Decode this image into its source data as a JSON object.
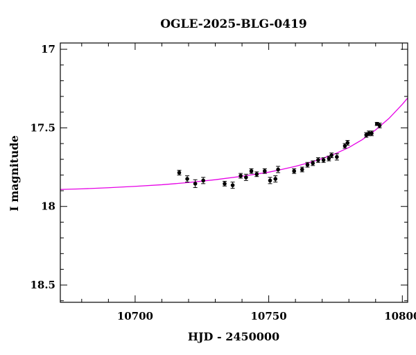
{
  "chart_data": {
    "type": "scatter",
    "title": "OGLE-2025-BLG-0419",
    "xlabel": "HJD - 2450000",
    "ylabel": "I magnitude",
    "xlim": [
      10672,
      10802
    ],
    "ylim": [
      18.61,
      16.96
    ],
    "y_inverted": true,
    "x_major_ticks": [
      10700,
      10750,
      10800
    ],
    "x_tick_labels": [
      "10700",
      "10750",
      "10800"
    ],
    "x_minor_step": 10,
    "y_major_ticks": [
      17,
      17.5,
      18,
      18.5
    ],
    "y_tick_labels": [
      "17",
      "17.5",
      "18",
      "18.5"
    ],
    "y_minor_step": 0.1,
    "grid": false,
    "colors": {
      "data": "#000000",
      "model": "#e600e6",
      "axes": "#000000"
    },
    "series": [
      {
        "kind": "errorbar",
        "x": [
          10716.5,
          10719.5,
          10722.5,
          10725.5,
          10733.5,
          10736.5,
          10739.5,
          10741.5,
          10743.5,
          10745.5,
          10748.5,
          10750.5,
          10752.5,
          10753.5,
          10759.5,
          10762.5,
          10764.5,
          10766.5,
          10768.5,
          10770.5,
          10772.5,
          10773.5,
          10775.5,
          10778.5,
          10779.5,
          10786.5,
          10787.5,
          10788.5,
          10790.5,
          10791.5
        ],
        "y": [
          17.785,
          17.825,
          17.855,
          17.835,
          17.855,
          17.865,
          17.805,
          17.815,
          17.775,
          17.795,
          17.775,
          17.835,
          17.825,
          17.765,
          17.775,
          17.765,
          17.735,
          17.725,
          17.705,
          17.705,
          17.695,
          17.675,
          17.685,
          17.615,
          17.595,
          17.545,
          17.535,
          17.535,
          17.475,
          17.485
        ],
        "yerr": [
          0.015,
          0.02,
          0.025,
          0.02,
          0.015,
          0.02,
          0.015,
          0.02,
          0.015,
          0.015,
          0.015,
          0.02,
          0.02,
          0.02,
          0.015,
          0.015,
          0.015,
          0.015,
          0.015,
          0.015,
          0.015,
          0.015,
          0.02,
          0.015,
          0.015,
          0.015,
          0.015,
          0.015,
          0.01,
          0.015
        ]
      },
      {
        "kind": "line",
        "x": [
          10672,
          10680,
          10690,
          10700,
          10710,
          10720,
          10730,
          10740,
          10750,
          10755,
          10760,
          10765,
          10770,
          10775,
          10780,
          10785,
          10790,
          10795,
          10800,
          10802
        ],
        "y": [
          17.892,
          17.888,
          17.881,
          17.872,
          17.862,
          17.848,
          17.83,
          17.808,
          17.782,
          17.764,
          17.745,
          17.722,
          17.695,
          17.664,
          17.625,
          17.575,
          17.513,
          17.44,
          17.35,
          17.31
        ]
      }
    ]
  }
}
